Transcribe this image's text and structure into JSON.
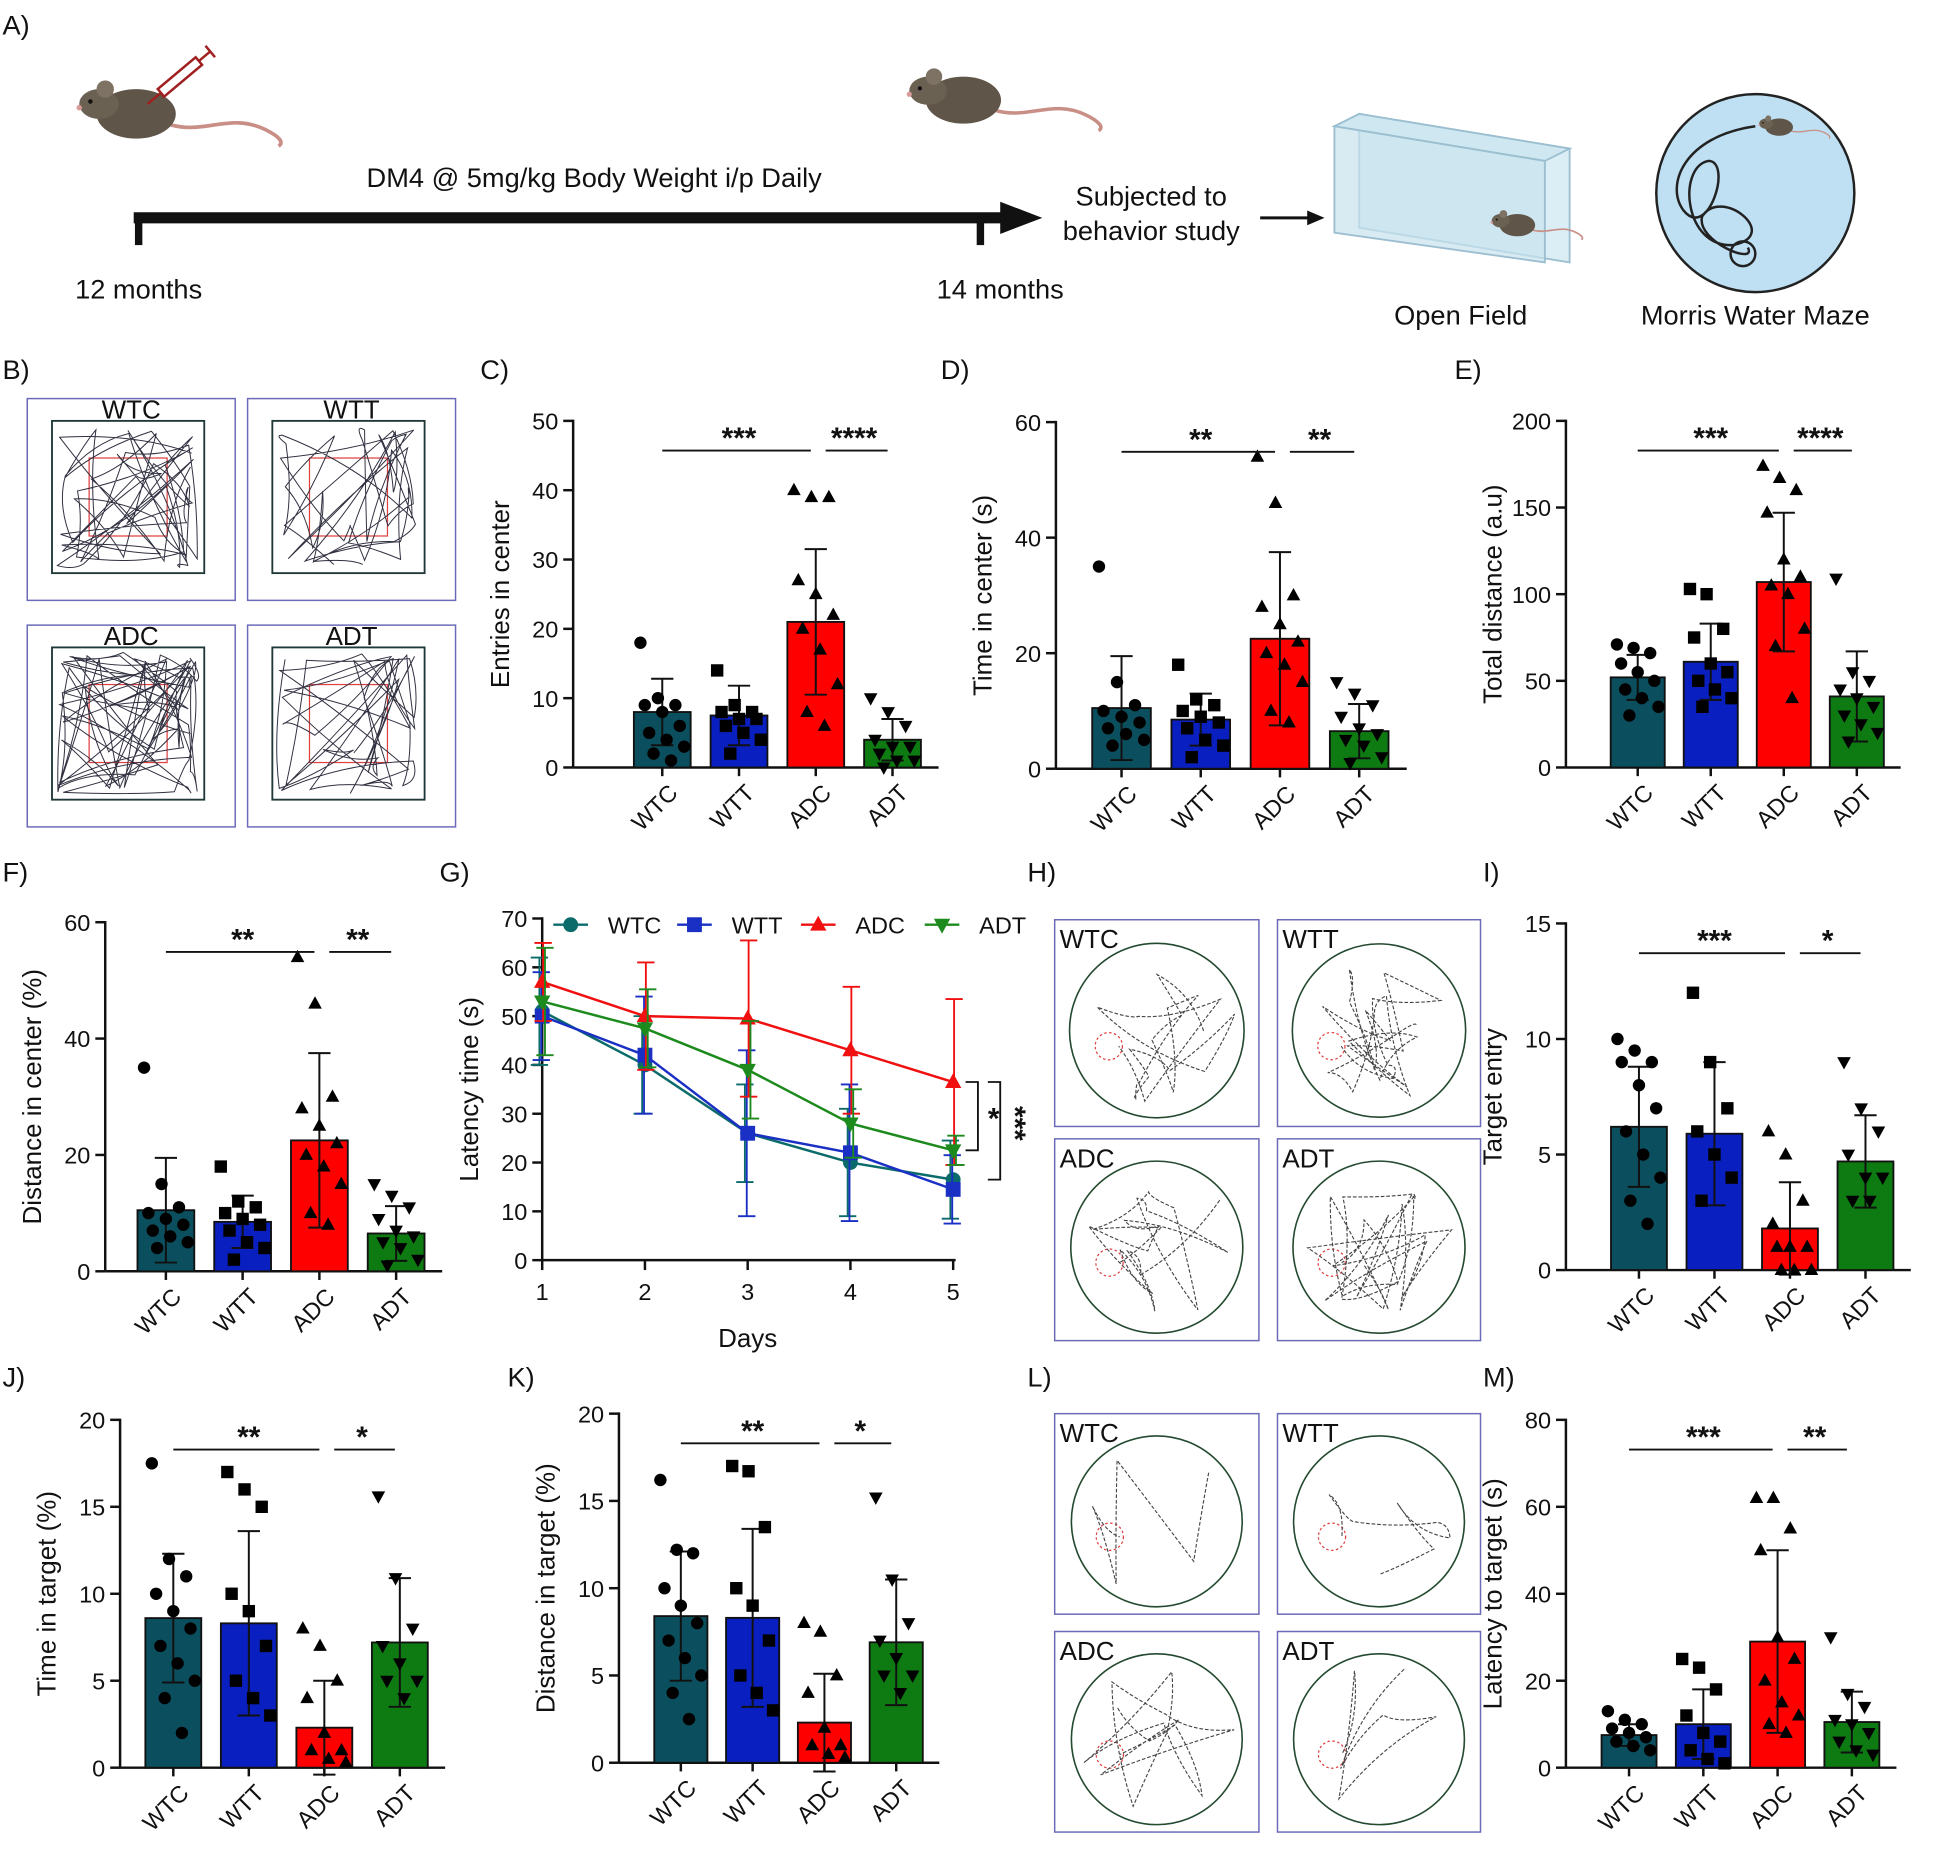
{
  "panel_a": {
    "label": "A)",
    "treatment": "DM4 @ 5mg/kg Body Weight i/p Daily",
    "start": "12 months",
    "end": "14 months",
    "next": [
      "Subjected to",
      "behavior study"
    ],
    "tests": [
      "Open Field",
      "Morris Water Maze"
    ]
  },
  "track_panels": [
    {
      "label": "B)",
      "kind": "open-field",
      "groups": [
        "WTC",
        "WTT",
        "ADC",
        "ADT"
      ]
    },
    {
      "label": "H)",
      "kind": "maze",
      "groups": [
        "WTC",
        "WTT",
        "ADC",
        "ADT"
      ]
    },
    {
      "label": "L)",
      "kind": "maze",
      "groups": [
        "WTC",
        "WTT",
        "ADC",
        "ADT"
      ]
    }
  ],
  "chart_data": [
    {
      "type": "bar",
      "label": "C)",
      "ylabel": "Entries in center",
      "categories": [
        "WTC",
        "WTT",
        "ADC",
        "ADT"
      ],
      "colors": [
        "#0b4f5e",
        "#0a1fbf",
        "#ff0000",
        "#0e7a12"
      ],
      "markers": [
        "circle",
        "square",
        "triangle",
        "triangle-down"
      ],
      "values": [
        8,
        7.5,
        21,
        4
      ],
      "errors": [
        4.8,
        4.3,
        10.5,
        3
      ],
      "points": [
        [
          18,
          10,
          9,
          9,
          8,
          6,
          5,
          4,
          3,
          2,
          1
        ],
        [
          14,
          9,
          8,
          8,
          7,
          7,
          6,
          5,
          4,
          2
        ],
        [
          40,
          39,
          39,
          27,
          25,
          22,
          20,
          17,
          12,
          8,
          6
        ],
        [
          10,
          8,
          6,
          4,
          3,
          3,
          2,
          1,
          1,
          0
        ]
      ],
      "ylim": [
        0,
        50
      ],
      "yticks": [
        0,
        10,
        20,
        30,
        40,
        50
      ],
      "significance": [
        {
          "groups": [
            "WTC",
            "ADC"
          ],
          "label": "***"
        },
        {
          "groups": [
            "ADC",
            "ADT"
          ],
          "label": "****"
        }
      ]
    },
    {
      "type": "bar",
      "label": "D)",
      "ylabel": "Time in center (s)",
      "categories": [
        "WTC",
        "WTT",
        "ADC",
        "ADT"
      ],
      "colors": [
        "#0b4f5e",
        "#0a1fbf",
        "#ff0000",
        "#0e7a12"
      ],
      "markers": [
        "circle",
        "square",
        "triangle",
        "triangle-down"
      ],
      "values": [
        10.5,
        8.5,
        22.5,
        6.5
      ],
      "errors": [
        9,
        4.5,
        15,
        4.7
      ],
      "points": [
        [
          35,
          15,
          11,
          10,
          9,
          8,
          7,
          6,
          5,
          4
        ],
        [
          18,
          12,
          11,
          10,
          9,
          8,
          7,
          5,
          4,
          2
        ],
        [
          54,
          46,
          30,
          28,
          25,
          22,
          20,
          18,
          15,
          10,
          8
        ],
        [
          15,
          13,
          11,
          9,
          7,
          6,
          5,
          4,
          2,
          1
        ]
      ],
      "ylim": [
        0,
        60
      ],
      "yticks": [
        0,
        20,
        40,
        60
      ],
      "significance": [
        {
          "groups": [
            "WTC",
            "ADC"
          ],
          "label": "**"
        },
        {
          "groups": [
            "ADC",
            "ADT"
          ],
          "label": "**"
        }
      ]
    },
    {
      "type": "bar",
      "label": "E)",
      "ylabel": "Total distance (a.u)",
      "categories": [
        "WTC",
        "WTT",
        "ADC",
        "ADT"
      ],
      "colors": [
        "#0b4f5e",
        "#0a1fbf",
        "#ff0000",
        "#0e7a12"
      ],
      "markers": [
        "circle",
        "square",
        "triangle",
        "triangle-down"
      ],
      "values": [
        52,
        61,
        107,
        41
      ],
      "errors": [
        13,
        22,
        40,
        26
      ],
      "points": [
        [
          71,
          69,
          66,
          60,
          55,
          50,
          45,
          40,
          35,
          30
        ],
        [
          103,
          100,
          80,
          75,
          60,
          55,
          50,
          45,
          40,
          35
        ],
        [
          174,
          167,
          160,
          147,
          120,
          110,
          105,
          100,
          80,
          70,
          40
        ],
        [
          109,
          55,
          50,
          45,
          40,
          35,
          30,
          25,
          20,
          15
        ]
      ],
      "ylim": [
        0,
        200
      ],
      "yticks": [
        0,
        50,
        100,
        150,
        200
      ],
      "significance": [
        {
          "groups": [
            "WTC",
            "ADC"
          ],
          "label": "***"
        },
        {
          "groups": [
            "ADC",
            "ADT"
          ],
          "label": "****"
        }
      ]
    },
    {
      "type": "bar",
      "label": "F)",
      "ylabel": "Distance in center (%)",
      "categories": [
        "WTC",
        "WTT",
        "ADC",
        "ADT"
      ],
      "colors": [
        "#0b4f5e",
        "#0a1fbf",
        "#ff0000",
        "#0e7a12"
      ],
      "markers": [
        "circle",
        "square",
        "triangle",
        "triangle-down"
      ],
      "values": [
        10.5,
        8.5,
        22.5,
        6.5
      ],
      "errors": [
        9,
        4.5,
        15,
        4.7
      ],
      "points": [
        [
          35,
          15,
          11,
          10,
          9,
          8,
          7,
          6,
          5,
          4
        ],
        [
          18,
          12,
          11,
          10,
          9,
          8,
          7,
          5,
          4,
          2
        ],
        [
          54,
          46,
          30,
          28,
          25,
          22,
          20,
          18,
          15,
          10,
          8
        ],
        [
          15,
          13,
          11,
          9,
          7,
          6,
          5,
          4,
          2,
          1
        ]
      ],
      "ylim": [
        0,
        60
      ],
      "yticks": [
        0,
        20,
        40,
        60
      ],
      "significance": [
        {
          "groups": [
            "WTC",
            "ADC"
          ],
          "label": "**"
        },
        {
          "groups": [
            "ADC",
            "ADT"
          ],
          "label": "**"
        }
      ]
    },
    {
      "type": "line",
      "label": "G)",
      "xlabel": "Days",
      "ylabel": "Latency time (s)",
      "x": [
        1,
        2,
        3,
        4,
        5
      ],
      "xlim": [
        1,
        5
      ],
      "xticks": [
        1,
        2,
        3,
        4,
        5
      ],
      "ylim": [
        0,
        70
      ],
      "yticks": [
        0,
        10,
        20,
        30,
        40,
        50,
        60,
        70
      ],
      "legend": "top",
      "series": [
        {
          "name": "WTC",
          "color": "#0b6b6b",
          "marker": "circle",
          "values": [
            51,
            40,
            26,
            20,
            16.5
          ],
          "errors": [
            11,
            10,
            10,
            11,
            8
          ]
        },
        {
          "name": "WTT",
          "color": "#1a2fc4",
          "marker": "square",
          "values": [
            50,
            42,
            26,
            22,
            14.5
          ],
          "errors": [
            9,
            12,
            17,
            14,
            7
          ]
        },
        {
          "name": "ADC",
          "color": "#f01010",
          "marker": "triangle",
          "values": [
            57,
            50,
            49.5,
            43,
            36.5
          ],
          "errors": [
            8,
            11,
            16,
            13,
            17
          ]
        },
        {
          "name": "ADT",
          "color": "#1c8a1c",
          "marker": "triangle-down",
          "values": [
            53,
            47.5,
            39,
            28,
            22.5
          ],
          "errors": [
            11,
            8,
            10,
            7,
            3
          ]
        }
      ],
      "significance": [
        {
          "groups": [
            "ADC",
            "ADT"
          ],
          "label": "*"
        },
        {
          "groups": [
            "ADC",
            "WTC"
          ],
          "label": "***"
        }
      ]
    },
    {
      "type": "bar",
      "label": "I)",
      "ylabel": "Target entry",
      "categories": [
        "WTC",
        "WTT",
        "ADC",
        "ADT"
      ],
      "colors": [
        "#0b4f5e",
        "#0a1fbf",
        "#ff0000",
        "#0e7a12"
      ],
      "markers": [
        "circle",
        "square",
        "triangle",
        "triangle-down"
      ],
      "values": [
        6.2,
        5.9,
        1.8,
        4.7
      ],
      "errors": [
        2.6,
        3.1,
        2,
        2
      ],
      "points": [
        [
          10,
          9.5,
          9,
          9,
          8,
          7,
          6,
          5,
          4,
          3,
          2
        ],
        [
          12,
          9,
          7,
          6,
          5,
          4,
          3
        ],
        [
          6,
          5,
          3,
          2,
          1,
          1,
          1,
          0,
          0,
          0
        ],
        [
          9,
          7,
          6,
          5,
          4,
          4,
          3,
          3
        ]
      ],
      "ylim": [
        0,
        15
      ],
      "yticks": [
        0,
        5,
        10,
        15
      ],
      "significance": [
        {
          "groups": [
            "WTC",
            "ADC"
          ],
          "label": "***"
        },
        {
          "groups": [
            "ADC",
            "ADT"
          ],
          "label": "*"
        }
      ]
    },
    {
      "type": "bar",
      "label": "J)",
      "ylabel": "Time in target (%)",
      "categories": [
        "WTC",
        "WTT",
        "ADC",
        "ADT"
      ],
      "colors": [
        "#0b4f5e",
        "#0a1fbf",
        "#ff0000",
        "#0e7a12"
      ],
      "markers": [
        "circle",
        "square",
        "triangle",
        "triangle-down"
      ],
      "values": [
        8.6,
        8.3,
        2.3,
        7.2
      ],
      "errors": [
        3.7,
        5.3,
        2.7,
        3.7
      ],
      "points": [
        [
          17.5,
          12,
          11,
          10,
          9,
          8,
          7,
          6,
          5,
          4,
          2
        ],
        [
          17,
          16,
          15,
          10,
          9,
          7,
          5,
          4,
          3
        ],
        [
          8,
          7,
          5,
          4,
          2,
          1,
          1,
          0.5,
          0.3
        ],
        [
          15.6,
          10.9,
          8,
          7,
          6,
          5,
          5,
          4
        ]
      ],
      "ylim": [
        0,
        20
      ],
      "yticks": [
        0,
        5,
        10,
        15,
        20
      ],
      "significance": [
        {
          "groups": [
            "WTC",
            "ADC"
          ],
          "label": "**"
        },
        {
          "groups": [
            "ADC",
            "ADT"
          ],
          "label": "*"
        }
      ]
    },
    {
      "type": "bar",
      "label": "K)",
      "ylabel": "Distance in target (%)",
      "categories": [
        "WTC",
        "WTT",
        "ADC",
        "ADT"
      ],
      "colors": [
        "#0b4f5e",
        "#0a1fbf",
        "#ff0000",
        "#0e7a12"
      ],
      "markers": [
        "circle",
        "square",
        "triangle",
        "triangle-down"
      ],
      "values": [
        8.4,
        8.3,
        2.3,
        6.9
      ],
      "errors": [
        3.7,
        5.1,
        2.8,
        3.6
      ],
      "points": [
        [
          16.2,
          12.2,
          12,
          10,
          9,
          8,
          7,
          6,
          5,
          4,
          2.5
        ],
        [
          17,
          16.7,
          13.5,
          10,
          9,
          7,
          5,
          4,
          3
        ],
        [
          8,
          7.5,
          5,
          4,
          2,
          1,
          1,
          0.5,
          0.3
        ],
        [
          15.2,
          10.5,
          8,
          7,
          6,
          5,
          5,
          4
        ]
      ],
      "ylim": [
        0,
        20
      ],
      "yticks": [
        0,
        5,
        10,
        15,
        20
      ],
      "significance": [
        {
          "groups": [
            "WTC",
            "ADC"
          ],
          "label": "**"
        },
        {
          "groups": [
            "ADC",
            "ADT"
          ],
          "label": "*"
        }
      ]
    },
    {
      "type": "bar",
      "label": "M)",
      "ylabel": "Latency to target (s)",
      "categories": [
        "WTC",
        "WTT",
        "ADC",
        "ADT"
      ],
      "colors": [
        "#0b4f5e",
        "#0a1fbf",
        "#ff0000",
        "#0e7a12"
      ],
      "markers": [
        "circle",
        "square",
        "triangle",
        "triangle-down"
      ],
      "values": [
        7.5,
        10,
        29,
        10.5
      ],
      "errors": [
        2.5,
        8,
        21,
        7
      ],
      "points": [
        [
          13,
          11,
          10,
          9,
          8,
          7,
          6,
          5,
          4
        ],
        [
          25,
          23,
          18,
          12,
          8,
          6,
          4,
          2,
          1
        ],
        [
          62,
          62,
          55,
          50,
          30,
          25,
          20,
          15,
          12,
          10,
          8
        ],
        [
          30,
          17,
          14,
          11,
          10,
          8,
          6,
          4,
          3
        ]
      ],
      "ylim": [
        0,
        80
      ],
      "yticks": [
        0,
        20,
        40,
        60,
        80
      ],
      "significance": [
        {
          "groups": [
            "WTC",
            "ADC"
          ],
          "label": "***"
        },
        {
          "groups": [
            "ADC",
            "ADT"
          ],
          "label": "**"
        }
      ]
    }
  ]
}
